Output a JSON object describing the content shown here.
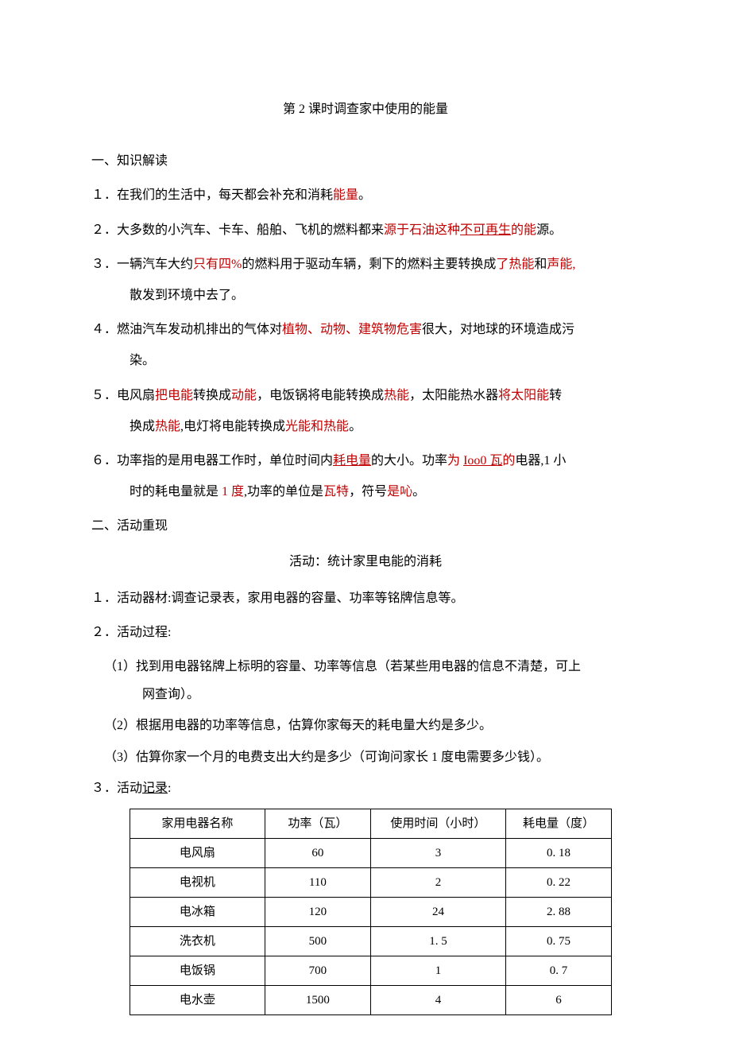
{
  "colors": {
    "text": "#000000",
    "highlight": "#c00000",
    "background": "#ffffff",
    "border": "#000000"
  },
  "typography": {
    "body_fontsize": 16,
    "table_fontsize": 15,
    "line_height": 2.2,
    "font_family": "SimSun"
  },
  "title": "第 2 课时调查家中使用的能量",
  "section1_heading": "一、知识解读",
  "items": {
    "i1_pre": "１．在我们的生活中，每天都会补充和消耗",
    "i1_red": "能量",
    "i1_post": "。",
    "i2_pre": "２．大多数的小汽车、卡车、船舶、飞机的燃料都来",
    "i2_red1": "源于石油这种",
    "i2_ul": "不可再生",
    "i2_red2": "的能",
    "i2_post": "源。",
    "i3_pre": "３．一辆汽车大约",
    "i3_red1": "只有四%",
    "i3_mid1": "的燃料用于驱动车辆，剩下的燃料主要转换成",
    "i3_red2": "了热能",
    "i3_mid2": "和",
    "i3_red3": "声能,",
    "i3_indent": "散发到环境中去了。",
    "i4_pre": "４．燃油汽车发动机排出的气体对",
    "i4_red": "植物、动物、建筑物危害",
    "i4_post": "很大，对地球的环境造成污",
    "i4_indent": "染。",
    "i5_pre": "５．电风扇",
    "i5_red1": "把电能",
    "i5_mid1": "转换成",
    "i5_red2": "动能",
    "i5_mid2": "，电饭锅将电能转换成",
    "i5_red3": "热能",
    "i5_mid3": "，太阳能热水器",
    "i5_red4": "将太阳能",
    "i5_post": "转",
    "i5_indent_pre": "换成",
    "i5_indent_red1": "热能",
    "i5_indent_mid": ",电灯将电能转换成",
    "i5_indent_red2": "光能和热能",
    "i5_indent_post": "。",
    "i6_pre": "６．功率指的是用电器工作时，单位时间内",
    "i6_ul1": "耗电量",
    "i6_mid1": "的大小。功率",
    "i6_red1": "为 ",
    "i6_ul2": "Ioo0 瓦",
    "i6_red2": "的",
    "i6_post": "电器,1 小",
    "i6_indent_pre": "时的耗电量就是",
    "i6_indent_red1": " 1 度",
    "i6_indent_mid1": ",功率的单位是",
    "i6_indent_red2": "瓦特",
    "i6_indent_mid2": "，符号",
    "i6_indent_red3": "是吣",
    "i6_indent_post": "。"
  },
  "section2_heading": "二、活动重现",
  "activity_title": "活动：统计家里电能的消耗",
  "activity": {
    "a1": "１．活动器材:调查记录表，家用电器的容量、功率等铭牌信息等。",
    "a2": "２．活动过程:",
    "s1": "（1）找到用电器铭牌上标明的容量、功率等信息（若某些用电器的信息不清楚，可上",
    "s1_indent": "网查询）。",
    "s2": "（2）根据用电器的功率等信息，估算你家每天的耗电量大约是多少。",
    "s3": "（3）估算你家一个月的电费支出大约是多少（可询问家长 1 度电需要多少钱）。",
    "a3_pre": "３．活动",
    "a3_ul": "记录",
    "a3_post": ":"
  },
  "table": {
    "type": "table",
    "columns": [
      "家用电器名称",
      "功率（瓦）",
      "使用时间（小时）",
      "耗电量（度）"
    ],
    "column_widths": [
      "28%",
      "22%",
      "28%",
      "22%"
    ],
    "rows": [
      [
        "电风扇",
        "60",
        "3",
        "0. 18"
      ],
      [
        "电视机",
        "110",
        "2",
        "0. 22"
      ],
      [
        "电冰箱",
        "120",
        "24",
        "2. 88"
      ],
      [
        "洗衣机",
        "500",
        "1. 5",
        "0. 75"
      ],
      [
        "电饭锅",
        "700",
        "1",
        "0. 7"
      ],
      [
        "电水壶",
        "1500",
        "4",
        "6"
      ]
    ],
    "border_color": "#000000",
    "background_color": "#ffffff",
    "cell_fontsize": 15,
    "text_align": "center"
  }
}
